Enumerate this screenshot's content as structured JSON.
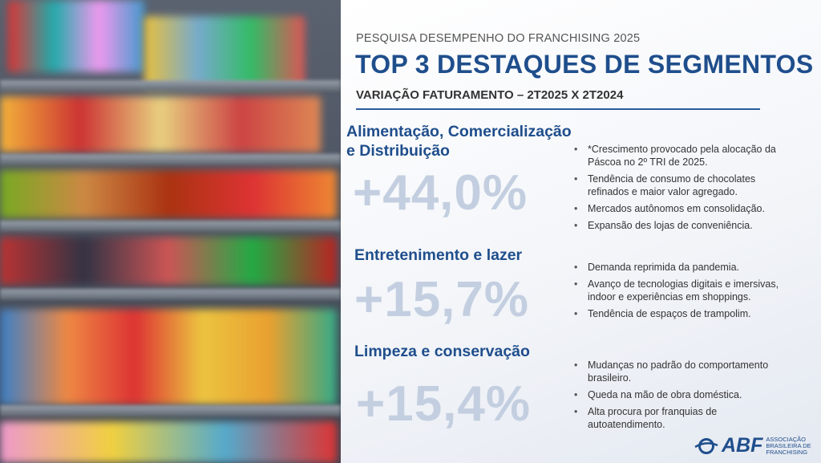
{
  "header": {
    "kicker": "PESQUISA DESEMPENHO DO FRANCHISING 2025",
    "title": "TOP 3 DESTAQUES DE SEGMENTOS",
    "subtitle": "VARIAÇÃO FATURAMENTO – 2T2025 X 2T2024"
  },
  "segments": [
    {
      "name_line1": "Alimentação, Comercialização",
      "name_line2": "e Distribuição",
      "value": "+44,0%",
      "bullets": [
        "*Crescimento provocado pela alocação da Páscoa no 2º TRI de 2025.",
        "Tendência de consumo de chocolates refinados e maior valor agregado.",
        "Mercados autônomos em consolidação.",
        "Expansão des lojas de conveniência."
      ]
    },
    {
      "name_line1": "Entretenimento e lazer",
      "value": "+15,7%",
      "bullets": [
        "Demanda reprimida da pandemia.",
        "Avanço de tecnologias digitais e imersivas, indoor e experiências em shoppings.",
        "Tendência de espaços de trampolim."
      ]
    },
    {
      "name_line1": "Limpeza e conservação",
      "value": "+15,4%",
      "bullets": [
        "Mudanças no padrão do comportamento brasileiro.",
        "Queda na mão de obra doméstica.",
        "Alta procura por franquias de autoatendimento."
      ]
    }
  ],
  "logo": {
    "mark": "ABF",
    "line1": "ASSOCIAÇÃO",
    "line2": "BRASILEIRA DE",
    "line3": "FRANCHISING"
  },
  "colors": {
    "brand": "#1f4e8c",
    "percent": "#c3cfe0"
  }
}
